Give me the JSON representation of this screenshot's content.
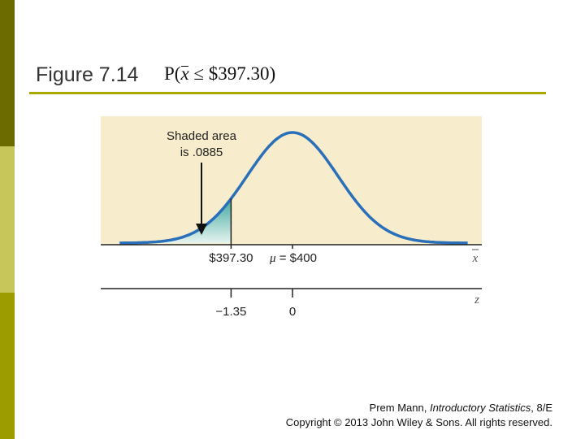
{
  "slide": {
    "title": "Figure 7.14",
    "formula": {
      "prefix": "P(",
      "variable": "x",
      "relation": " ≤ ",
      "value": "$397.30",
      "suffix": ")"
    }
  },
  "figure": {
    "annotation": [
      "Shaded area",
      "is .0885"
    ],
    "xbar_axis": {
      "label": "x",
      "ticks": [
        {
          "value": 397.3,
          "label": "$397.30"
        },
        {
          "value": 400,
          "label": "μ = $400",
          "symbol": "μ",
          "rest": " = $400"
        }
      ]
    },
    "z_axis": {
      "label": "z",
      "ticks": [
        {
          "value": -1.35,
          "label": "−1.35"
        },
        {
          "value": 0,
          "label": "0"
        }
      ]
    },
    "shaded_area": 0.0885,
    "colors": {
      "background": "#f7eccb",
      "curve": "#2a6fba",
      "shade_top": "#3fa9a0",
      "shade_bottom": "#e6f3ee",
      "accent": "#a8a800"
    }
  },
  "credit": {
    "line1_prefix": "Prem Mann, ",
    "line1_italic": "Introductory Statistics",
    "line1_suffix": ", 8/E",
    "line2": "Copyright © 2013 John Wiley & Sons. All rights reserved."
  }
}
